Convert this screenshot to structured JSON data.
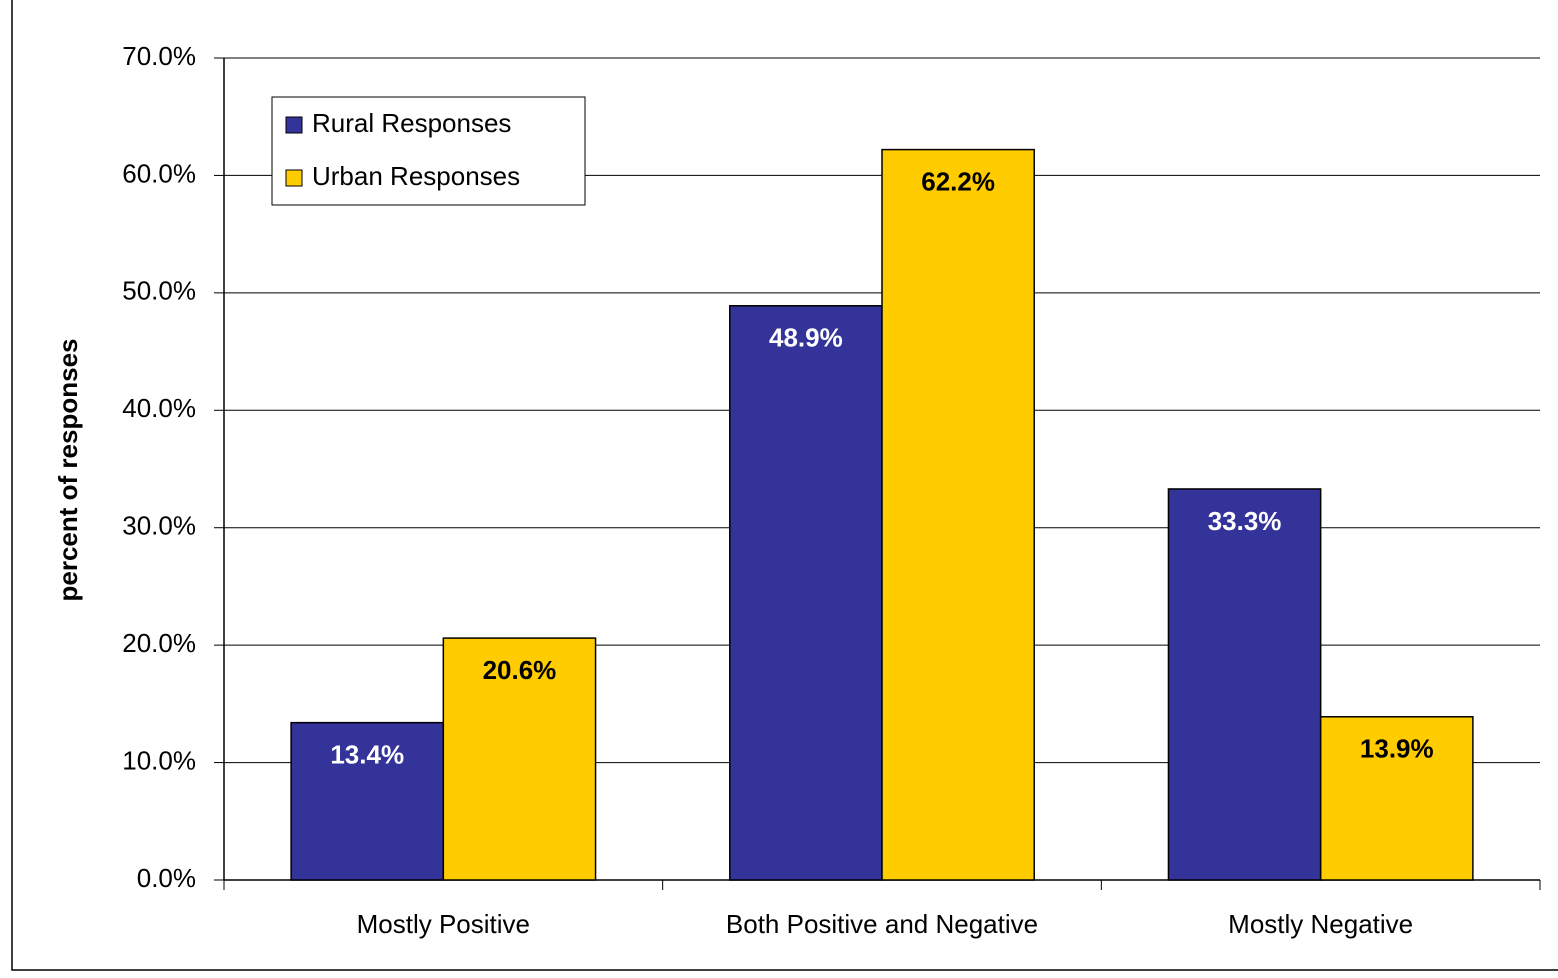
{
  "chart_data": {
    "type": "bar",
    "y_label": "percent of responses",
    "categories": [
      "Mostly Positive",
      "Both Positive and Negative",
      "Mostly Negative"
    ],
    "series": [
      {
        "name": "Rural Responses",
        "color": "#333399",
        "label_color": "#ffffff",
        "values": [
          13.4,
          48.9,
          33.3
        ],
        "value_labels": [
          "13.4%",
          "48.9%",
          "33.3%"
        ]
      },
      {
        "name": "Urban Responses",
        "color": "#ffcc00",
        "label_color": "#000000",
        "values": [
          20.6,
          62.2,
          13.9
        ],
        "value_labels": [
          "20.6%",
          "62.2%",
          "13.9%"
        ]
      }
    ],
    "ylim": [
      0,
      70
    ],
    "yticks": [
      {
        "value": 0,
        "label": "0.0%"
      },
      {
        "value": 10,
        "label": "10.0%"
      },
      {
        "value": 20,
        "label": "20.0%"
      },
      {
        "value": 30,
        "label": "30.0%"
      },
      {
        "value": 40,
        "label": "40.0%"
      },
      {
        "value": 50,
        "label": "50.0%"
      },
      {
        "value": 60,
        "label": "60.0%"
      },
      {
        "value": 70,
        "label": "70.0%"
      }
    ],
    "grid": true,
    "legend": "upper left"
  }
}
